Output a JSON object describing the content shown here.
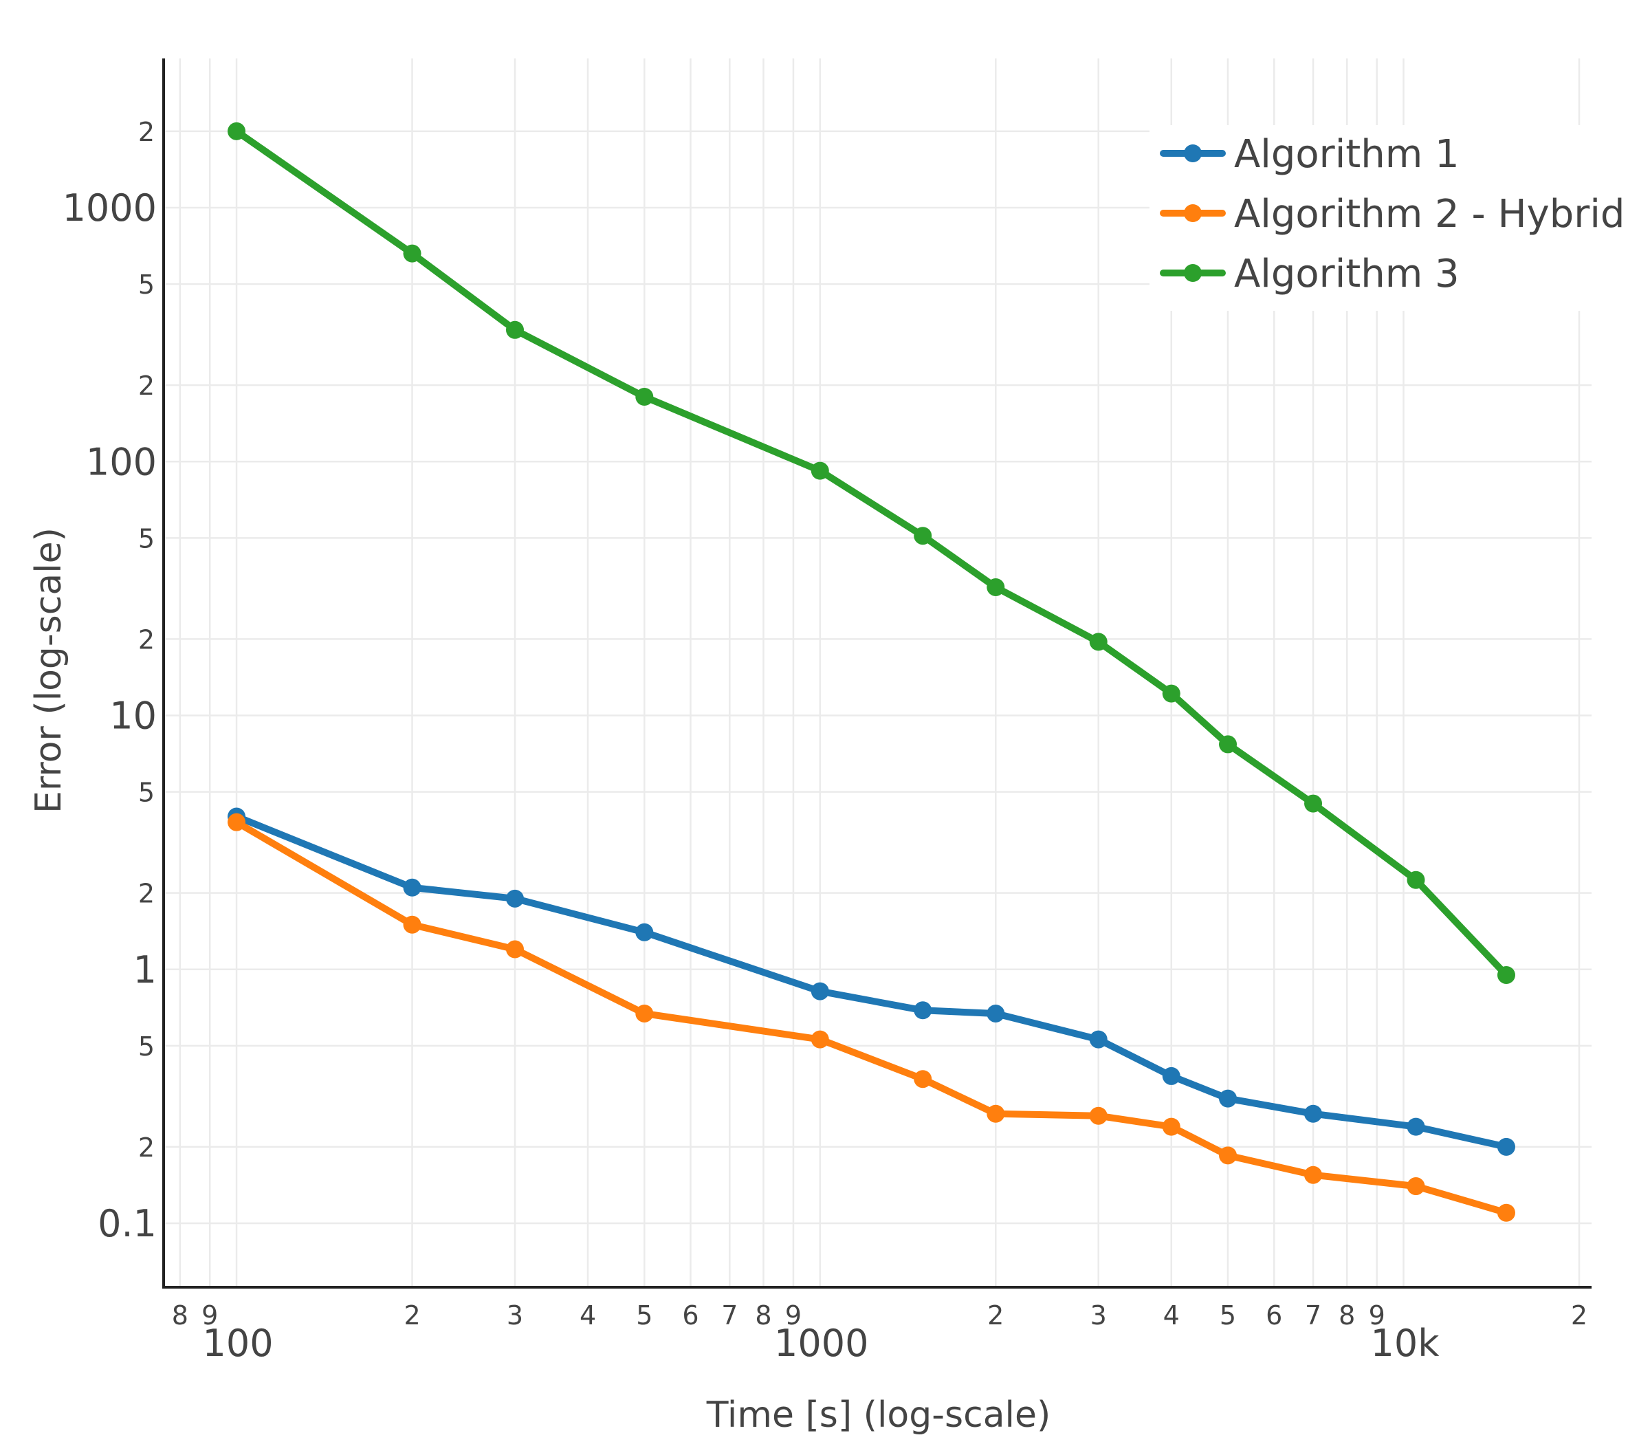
{
  "chart_data": {
    "type": "line",
    "xlabel": "Time [s] (log-scale)",
    "ylabel": "Error (log-scale)",
    "x_scale": "log",
    "y_scale": "log",
    "xlim": [
      75,
      21000
    ],
    "ylim": [
      0.056,
      3870
    ],
    "grid": true,
    "legend_position": "top-right",
    "x_major_ticks": [
      {
        "value": 100,
        "label": "100"
      },
      {
        "value": 1000,
        "label": "1000"
      },
      {
        "value": 10000,
        "label": "10k"
      }
    ],
    "x_minor_ticks": [
      {
        "value": 80,
        "label": "8"
      },
      {
        "value": 90,
        "label": "9"
      },
      {
        "value": 200,
        "label": "2"
      },
      {
        "value": 300,
        "label": "3"
      },
      {
        "value": 400,
        "label": "4"
      },
      {
        "value": 500,
        "label": "5"
      },
      {
        "value": 600,
        "label": "6"
      },
      {
        "value": 700,
        "label": "7"
      },
      {
        "value": 800,
        "label": "8"
      },
      {
        "value": 900,
        "label": "9"
      },
      {
        "value": 2000,
        "label": "2"
      },
      {
        "value": 3000,
        "label": "3"
      },
      {
        "value": 4000,
        "label": "4"
      },
      {
        "value": 5000,
        "label": "5"
      },
      {
        "value": 6000,
        "label": "6"
      },
      {
        "value": 7000,
        "label": "7"
      },
      {
        "value": 8000,
        "label": "8"
      },
      {
        "value": 9000,
        "label": "9"
      },
      {
        "value": 20000,
        "label": "2"
      }
    ],
    "y_major_ticks": [
      {
        "value": 0.1,
        "label": "0.1"
      },
      {
        "value": 1,
        "label": "1"
      },
      {
        "value": 10,
        "label": "10"
      },
      {
        "value": 100,
        "label": "100"
      },
      {
        "value": 1000,
        "label": "1000"
      }
    ],
    "y_minor_ticks": [
      {
        "value": 0.2,
        "label": "2"
      },
      {
        "value": 0.5,
        "label": "5"
      },
      {
        "value": 2,
        "label": "2"
      },
      {
        "value": 5,
        "label": "5"
      },
      {
        "value": 20,
        "label": "2"
      },
      {
        "value": 50,
        "label": "5"
      },
      {
        "value": 200,
        "label": "2"
      },
      {
        "value": 500,
        "label": "5"
      },
      {
        "value": 2000,
        "label": "2"
      }
    ],
    "series": [
      {
        "name": "Algorithm 1",
        "color": "#1f77b4",
        "points": [
          [
            100,
            4.0
          ],
          [
            200,
            2.1
          ],
          [
            300,
            1.9
          ],
          [
            500,
            1.4
          ],
          [
            1000,
            0.82
          ],
          [
            1500,
            0.69
          ],
          [
            2000,
            0.67
          ],
          [
            3000,
            0.53
          ],
          [
            4000,
            0.38
          ],
          [
            5000,
            0.31
          ],
          [
            7000,
            0.27
          ],
          [
            10500,
            0.24
          ],
          [
            15000,
            0.2
          ]
        ]
      },
      {
        "name": "Algorithm 2 - Hybrid",
        "color": "#ff7f0e",
        "points": [
          [
            100,
            3.8
          ],
          [
            200,
            1.5
          ],
          [
            300,
            1.2
          ],
          [
            500,
            0.67
          ],
          [
            1000,
            0.53
          ],
          [
            1500,
            0.37
          ],
          [
            2000,
            0.27
          ],
          [
            3000,
            0.265
          ],
          [
            4000,
            0.24
          ],
          [
            5000,
            0.185
          ],
          [
            7000,
            0.155
          ],
          [
            10500,
            0.14
          ],
          [
            15000,
            0.11
          ]
        ]
      },
      {
        "name": "Algorithm 3",
        "color": "#2ca02c",
        "points": [
          [
            100,
            2000
          ],
          [
            200,
            660
          ],
          [
            300,
            330
          ],
          [
            500,
            180
          ],
          [
            1000,
            92
          ],
          [
            1500,
            51
          ],
          [
            2000,
            32
          ],
          [
            3000,
            19.5
          ],
          [
            4000,
            12.2
          ],
          [
            5000,
            7.7
          ],
          [
            7000,
            4.5
          ],
          [
            10500,
            2.25
          ],
          [
            15000,
            0.95
          ]
        ]
      }
    ]
  }
}
